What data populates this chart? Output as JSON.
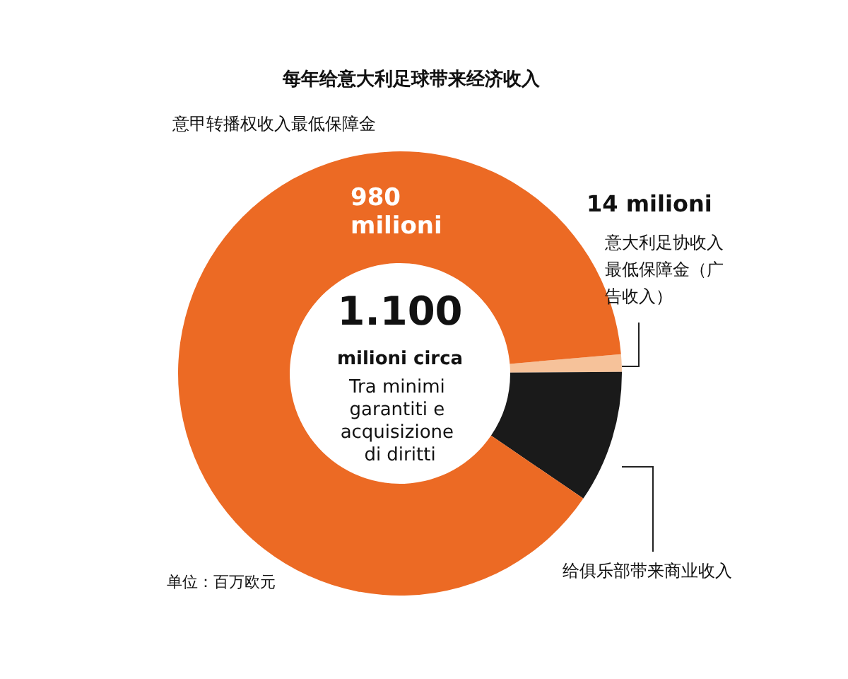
{
  "chart_data": {
    "type": "donut",
    "title": "每年给意大利足球带来经济收入",
    "categories": [
      "意大利足协收入最低保障金（广告收入）",
      "给俱乐部带来商业收入",
      "意甲转播权收入最低保障金"
    ],
    "values": [
      14,
      106,
      980
    ],
    "colors": [
      "#f6c29a",
      "#1a1a1a",
      "#ec6a24"
    ],
    "value_labels": [
      "14 milioni",
      null,
      "980 milioni"
    ],
    "annotations": [
      "1.100",
      "milioni circa",
      "Tra minimi garantiti e acquisizione di diritti",
      "单位：百万欧元"
    ]
  }
}
